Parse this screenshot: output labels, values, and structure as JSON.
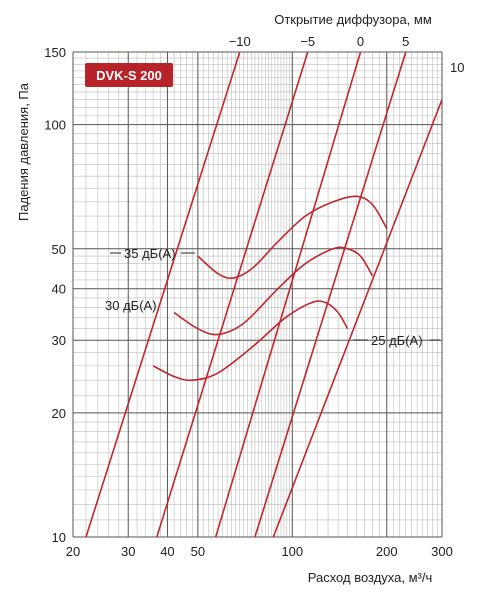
{
  "chart_data": {
    "type": "line",
    "badge": "DVK-S 200",
    "xlabel": "Расход воздуха, м³/ч",
    "ylabel": "Падения давления, Па",
    "top_axis_label": "Открытие диффузора, мм",
    "x_scale": "log",
    "y_scale": "log",
    "xlim": [
      20,
      300
    ],
    "ylim": [
      10,
      150
    ],
    "x_ticks": [
      20,
      30,
      40,
      50,
      100,
      200,
      300
    ],
    "y_ticks": [
      10,
      20,
      30,
      40,
      50,
      100,
      150
    ],
    "grid": true,
    "colors": {
      "line": "#c0282d",
      "grid": "#bdbdbd",
      "grid_major": "#555555",
      "badge": "#b8232a"
    },
    "diffuser_openings": [
      {
        "label": "−10",
        "points": [
          [
            22,
            10
          ],
          [
            68,
            150
          ]
        ]
      },
      {
        "label": "−5",
        "points": [
          [
            37,
            10
          ],
          [
            112,
            150
          ]
        ]
      },
      {
        "label": "0",
        "points": [
          [
            57,
            10
          ],
          [
            165,
            150
          ]
        ]
      },
      {
        "label": "5",
        "points": [
          [
            76,
            10
          ],
          [
            230,
            150
          ]
        ]
      },
      {
        "label": "10",
        "points": [
          [
            87,
            10
          ],
          [
            300,
            115
          ]
        ]
      }
    ],
    "noise_curves": [
      {
        "name": "35 дБ(А)",
        "points": [
          [
            50,
            48
          ],
          [
            58,
            43.5
          ],
          [
            65,
            42.5
          ],
          [
            75,
            45
          ],
          [
            90,
            52
          ],
          [
            110,
            60
          ],
          [
            135,
            65
          ],
          [
            160,
            67
          ],
          [
            180,
            64
          ],
          [
            200,
            56
          ]
        ]
      },
      {
        "name": "30 дБ(А)",
        "points": [
          [
            42,
            35
          ],
          [
            50,
            32
          ],
          [
            58,
            31
          ],
          [
            70,
            33
          ],
          [
            90,
            40
          ],
          [
            110,
            46
          ],
          [
            135,
            50
          ],
          [
            150,
            50
          ],
          [
            165,
            48
          ],
          [
            180,
            43
          ]
        ]
      },
      {
        "name": "25 дБ(А)",
        "points": [
          [
            36,
            26
          ],
          [
            42,
            24.5
          ],
          [
            48,
            24
          ],
          [
            58,
            25
          ],
          [
            75,
            29
          ],
          [
            95,
            34
          ],
          [
            115,
            37
          ],
          [
            128,
            37
          ],
          [
            140,
            35
          ],
          [
            150,
            32
          ]
        ]
      }
    ],
    "annotations": [
      "35 дБ(А)",
      "30 дБ(А)",
      "25 дБ(А)"
    ]
  }
}
